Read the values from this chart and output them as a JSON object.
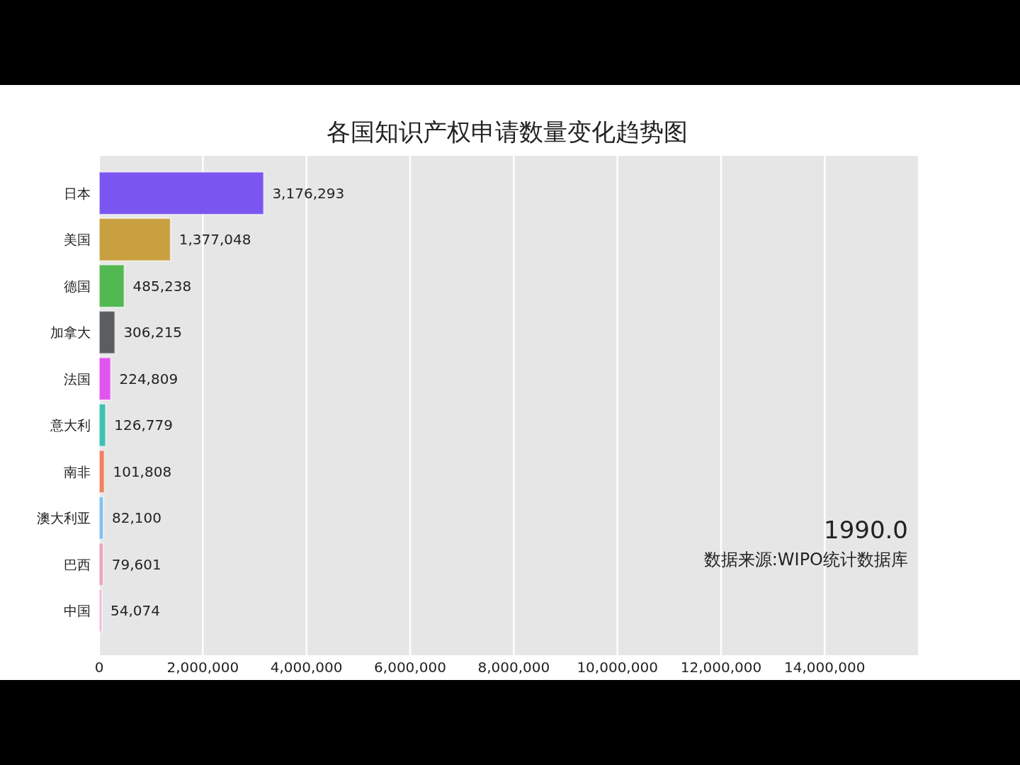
{
  "chart_data": {
    "type": "bar",
    "orientation": "horizontal",
    "title": "各国知识产权申请数量变化趋势图",
    "categories": [
      "日本",
      "美国",
      "德国",
      "加拿大",
      "法国",
      "意大利",
      "南非",
      "澳大利亚",
      "巴西",
      "中国"
    ],
    "values": [
      3176293,
      1377048,
      485238,
      306215,
      224809,
      126779,
      101808,
      82100,
      79601,
      54074
    ],
    "colors": [
      "#7b55f0",
      "#c9a040",
      "#52b852",
      "#5a5e5e",
      "#e055f0",
      "#40c0b0",
      "#f08060",
      "#80c0f0",
      "#f0a0c0",
      "#f0b8d8"
    ],
    "xlim": [
      0,
      15800000
    ],
    "xticks": [
      0,
      {
        "value": 2000000,
        "label": "2,000,000"
      },
      {
        "value": 4000000,
        "label": "4,000,000"
      },
      {
        "value": 6000000,
        "label": "6,000,000"
      },
      {
        "value": 8000000,
        "label": "8,000,000"
      },
      {
        "value": 10000000,
        "label": "10,000,000"
      },
      {
        "value": 12000000,
        "label": "12,000,000"
      },
      {
        "value": 14000000,
        "label": "14,000,000"
      }
    ],
    "value_labels": [
      "3,176,293",
      "1,377,048",
      "485,238",
      "306,215",
      "224,809",
      "126,779",
      "101,808",
      "82,100",
      "79,601",
      "54,074"
    ],
    "grid": "x",
    "annotations": [
      "1990.0",
      "数据来源:WIPO统计数据库"
    ]
  }
}
